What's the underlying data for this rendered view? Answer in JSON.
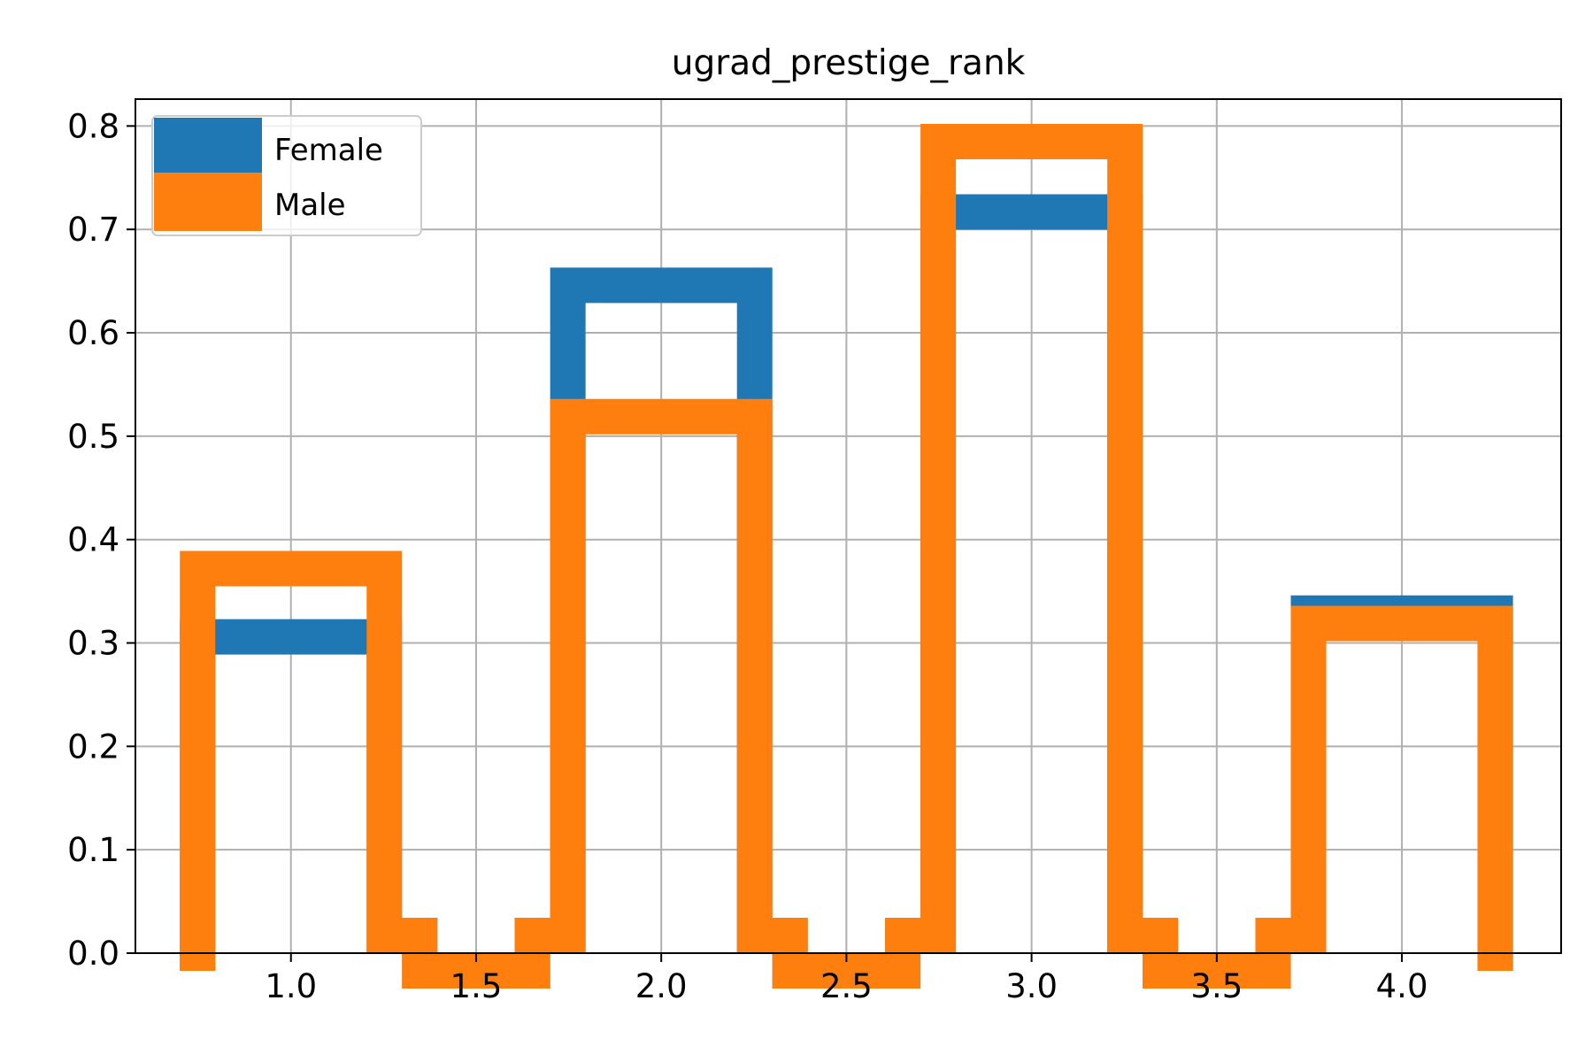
{
  "chart_data": {
    "type": "bar",
    "histtype": "step",
    "title": "ugrad_prestige_rank",
    "xlabel": "",
    "ylabel": "",
    "xlim": [
      0.58,
      4.43
    ],
    "ylim": [
      0,
      0.826
    ],
    "grid": true,
    "legend_position": "top-left",
    "bin_edges": [
      0.7,
      1.3,
      1.7,
      2.3,
      2.7,
      3.3,
      3.7,
      4.3
    ],
    "x_ticks": [
      "1.0",
      "1.5",
      "2.0",
      "2.5",
      "3.0",
      "3.5",
      "4.0"
    ],
    "y_ticks": [
      "0.0",
      "0.1",
      "0.2",
      "0.3",
      "0.4",
      "0.5",
      "0.6",
      "0.7",
      "0.8"
    ],
    "series": [
      {
        "name": "Female",
        "color": "#1f77b4",
        "values": [
          0.323,
          0.0,
          0.663,
          0.0,
          0.734,
          0.0,
          0.346
        ]
      },
      {
        "name": "Male",
        "color": "#ff7f0e",
        "values": [
          0.389,
          0.0,
          0.536,
          0.0,
          0.802,
          0.0,
          0.336
        ]
      }
    ]
  }
}
